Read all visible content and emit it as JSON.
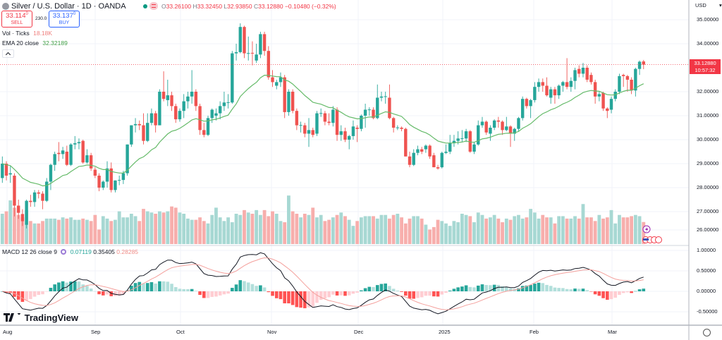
{
  "header": {
    "title": "Silver / U.S. Dollar · 1D · OANDA",
    "ohlc": {
      "o_label": "O",
      "o": "33.26100",
      "h_label": "H",
      "h": "33.32450",
      "l_label": "L",
      "l": "32.93850",
      "c_label": "C",
      "c": "33.12880",
      "change": "−0.10480 (−0.32%)"
    },
    "sell": {
      "price": "33.114",
      "sup": "0",
      "label": "SELL"
    },
    "spread": "230.0",
    "buy": {
      "price": "33.137",
      "sup": "0",
      "label": "BUY"
    }
  },
  "legends": {
    "volume": {
      "label": "Vol · Ticks",
      "value": "18.18K"
    },
    "ema": {
      "label": "EMA 20 close",
      "value": "32.32189"
    },
    "macd": {
      "label": "MACD 12 26 close 9",
      "hist": "0.07119",
      "macd": "0.35405",
      "signal": "0.28285"
    }
  },
  "price_axis": {
    "currency": "USD",
    "ticks": [
      "35.00000",
      "34.00000",
      "32.00000",
      "31.00000",
      "30.00000",
      "29.00000",
      "28.00000",
      "27.00000",
      "26.00000"
    ],
    "last_price": "33.12880",
    "countdown": "10:57:32"
  },
  "macd_axis": {
    "ticks": [
      "1.00000",
      "0.50000",
      "0.00000",
      "-0.50000"
    ]
  },
  "time_axis": {
    "ticks": [
      "Aug",
      "Sep",
      "Oct",
      "Nov",
      "Dec",
      "2025",
      "Feb",
      "Mar"
    ]
  },
  "brand": "TradingView",
  "colors": {
    "up": "#26a69a",
    "down": "#ef5350",
    "ema": "#66bb6a",
    "macd": "#131722",
    "signal": "#f4a09c",
    "accent_red": "#f23645",
    "buy_blue": "#2962ff"
  },
  "chart_data": {
    "type": "candlestick",
    "title": "Silver / U.S. Dollar · 1D · OANDA",
    "ylim": [
      25.8,
      35.2
    ],
    "macd_ylim": [
      -0.55,
      1.0
    ],
    "grid": true,
    "x_ticks": [
      "Aug",
      "Sep",
      "Oct",
      "Nov",
      "Dec",
      "2025",
      "Feb",
      "Mar"
    ],
    "candles_ohlc": [
      [
        28.4,
        29.3,
        28.2,
        29.0
      ],
      [
        29.0,
        29.1,
        28.3,
        28.5
      ],
      [
        28.55,
        28.9,
        28.2,
        28.6
      ],
      [
        28.5,
        28.6,
        26.8,
        27.25
      ],
      [
        27.25,
        27.5,
        26.7,
        26.95
      ],
      [
        26.9,
        27.1,
        26.4,
        26.6
      ],
      [
        26.45,
        27.5,
        26.3,
        27.45
      ],
      [
        27.45,
        27.7,
        27.2,
        27.4
      ],
      [
        27.4,
        27.9,
        27.2,
        27.8
      ],
      [
        27.8,
        27.9,
        27.55,
        27.75
      ],
      [
        27.75,
        27.85,
        27.1,
        27.45
      ],
      [
        27.45,
        28.4,
        27.4,
        28.25
      ],
      [
        28.25,
        29.0,
        27.9,
        28.95
      ],
      [
        28.95,
        29.5,
        28.7,
        29.4
      ],
      [
        29.45,
        29.9,
        29.1,
        29.4
      ],
      [
        29.4,
        29.7,
        29.2,
        29.55
      ],
      [
        29.5,
        29.75,
        28.9,
        28.95
      ],
      [
        28.95,
        29.85,
        28.9,
        29.8
      ],
      [
        29.8,
        30.15,
        29.6,
        29.85
      ],
      [
        29.85,
        30.05,
        29.6,
        29.9
      ],
      [
        29.95,
        30.0,
        29.0,
        29.05
      ],
      [
        29.05,
        29.6,
        29.0,
        29.35
      ],
      [
        29.35,
        29.45,
        28.7,
        28.8
      ],
      [
        28.75,
        28.85,
        28.4,
        28.5
      ],
      [
        28.5,
        28.6,
        27.85,
        28.0
      ],
      [
        28.0,
        28.3,
        27.9,
        28.25
      ],
      [
        28.25,
        29.1,
        28.0,
        28.8
      ],
      [
        28.8,
        29.05,
        27.8,
        27.9
      ],
      [
        27.9,
        28.3,
        27.8,
        28.3
      ],
      [
        28.3,
        28.5,
        28.1,
        28.32
      ],
      [
        28.32,
        28.7,
        28.15,
        28.6
      ],
      [
        28.6,
        29.8,
        28.5,
        29.8
      ],
      [
        29.8,
        30.6,
        29.7,
        30.6
      ],
      [
        30.6,
        30.9,
        30.3,
        30.65
      ],
      [
        30.65,
        30.8,
        30.4,
        30.6
      ],
      [
        30.6,
        31.1,
        29.8,
        29.95
      ],
      [
        29.95,
        31.1,
        29.9,
        30.7
      ],
      [
        30.7,
        31.3,
        30.6,
        31.1
      ],
      [
        31.1,
        31.2,
        30.3,
        30.6
      ],
      [
        30.6,
        32.1,
        30.6,
        32.0
      ],
      [
        32.0,
        32.85,
        31.6,
        31.7
      ],
      [
        31.65,
        32.5,
        31.4,
        31.85
      ],
      [
        31.85,
        32.0,
        31.2,
        31.4
      ],
      [
        31.4,
        31.5,
        30.7,
        30.85
      ],
      [
        30.85,
        31.3,
        30.75,
        31.2
      ],
      [
        31.2,
        31.9,
        30.9,
        31.6
      ],
      [
        31.6,
        32.0,
        31.3,
        31.8
      ],
      [
        31.8,
        32.9,
        31.5,
        32.0
      ],
      [
        32.0,
        32.1,
        31.2,
        31.4
      ],
      [
        31.4,
        31.5,
        30.2,
        30.4
      ],
      [
        30.4,
        30.7,
        30.1,
        30.2
      ],
      [
        30.2,
        31.0,
        30.15,
        30.9
      ],
      [
        30.9,
        31.3,
        30.7,
        31.25
      ],
      [
        31.0,
        31.3,
        30.8,
        31.1
      ],
      [
        31.1,
        31.6,
        30.85,
        31.4
      ],
      [
        31.4,
        32.0,
        31.2,
        31.55
      ],
      [
        31.55,
        31.9,
        31.3,
        31.56
      ],
      [
        31.55,
        33.7,
        31.5,
        33.6
      ],
      [
        33.6,
        34.0,
        33.3,
        33.65
      ],
      [
        33.65,
        34.85,
        33.6,
        34.7
      ],
      [
        34.7,
        34.75,
        33.4,
        33.6
      ],
      [
        33.6,
        34.3,
        33.3,
        33.61
      ],
      [
        33.62,
        34.1,
        33.1,
        33.6
      ],
      [
        33.3,
        34.0,
        33.2,
        33.55
      ],
      [
        33.55,
        34.5,
        33.4,
        34.4
      ],
      [
        34.4,
        34.5,
        33.5,
        33.7
      ],
      [
        33.7,
        33.9,
        32.5,
        32.6
      ],
      [
        32.6,
        32.9,
        32.2,
        32.4
      ],
      [
        32.25,
        32.5,
        32.1,
        32.4
      ],
      [
        32.4,
        32.8,
        32.2,
        32.6
      ],
      [
        32.6,
        32.7,
        30.9,
        31.15
      ],
      [
        31.15,
        32.1,
        31.0,
        32.0
      ],
      [
        32.0,
        32.1,
        31.1,
        31.2
      ],
      [
        31.2,
        31.3,
        30.4,
        30.6
      ],
      [
        30.6,
        30.75,
        30.3,
        30.61
      ],
      [
        30.6,
        30.7,
        30.1,
        30.25
      ],
      [
        30.25,
        30.9,
        29.7,
        30.4
      ],
      [
        30.4,
        30.5,
        30.1,
        30.2
      ],
      [
        30.25,
        31.2,
        30.15,
        31.1
      ],
      [
        31.1,
        31.3,
        30.95,
        31.11
      ],
      [
        31.1,
        31.2,
        30.6,
        30.75
      ],
      [
        30.75,
        31.1,
        30.6,
        30.7
      ],
      [
        30.7,
        31.4,
        30.55,
        31.25
      ],
      [
        31.25,
        31.35,
        29.95,
        30.2
      ],
      [
        30.2,
        30.6,
        29.95,
        30.35
      ],
      [
        30.35,
        30.5,
        29.9,
        30.0
      ],
      [
        30.0,
        30.2,
        29.6,
        30.15
      ],
      [
        30.15,
        30.8,
        30.0,
        30.55
      ],
      [
        30.5,
        30.6,
        29.9,
        30.45
      ],
      [
        30.45,
        31.05,
        30.35,
        31.0
      ],
      [
        31.0,
        31.5,
        30.5,
        31.25
      ],
      [
        31.25,
        31.35,
        31.0,
        31.26
      ],
      [
        31.25,
        31.35,
        30.85,
        30.9
      ],
      [
        30.9,
        32.3,
        30.85,
        31.75
      ],
      [
        31.75,
        32.0,
        31.6,
        31.8
      ],
      [
        31.8,
        32.0,
        31.5,
        31.81
      ],
      [
        31.75,
        32.3,
        30.85,
        30.9
      ],
      [
        30.9,
        30.95,
        30.3,
        30.5
      ],
      [
        30.5,
        30.6,
        30.4,
        30.51
      ],
      [
        30.5,
        30.55,
        30.35,
        30.45
      ],
      [
        30.45,
        30.5,
        29.3,
        29.3
      ],
      [
        29.3,
        29.5,
        28.85,
        28.95
      ],
      [
        28.95,
        29.6,
        28.9,
        29.45
      ],
      [
        29.45,
        29.75,
        29.35,
        29.6
      ],
      [
        29.6,
        29.7,
        29.4,
        29.5
      ],
      [
        29.6,
        29.8,
        29.45,
        29.75
      ],
      [
        29.75,
        29.8,
        29.2,
        29.3
      ],
      [
        29.35,
        29.45,
        28.85,
        28.85
      ],
      [
        28.85,
        28.95,
        28.75,
        28.8
      ],
      [
        28.85,
        29.5,
        28.8,
        29.45
      ],
      [
        29.45,
        29.8,
        29.4,
        29.5
      ],
      [
        29.5,
        30.2,
        29.4,
        29.85
      ],
      [
        29.85,
        30.2,
        29.7,
        29.95
      ],
      [
        29.95,
        30.35,
        29.8,
        30.05
      ],
      [
        30.05,
        30.4,
        29.9,
        30.06
      ],
      [
        30.05,
        30.45,
        29.9,
        30.35
      ],
      [
        30.35,
        30.4,
        29.45,
        29.5
      ],
      [
        29.5,
        29.9,
        29.4,
        29.8
      ],
      [
        29.8,
        30.8,
        29.75,
        30.6
      ],
      [
        30.6,
        30.95,
        30.5,
        30.75
      ],
      [
        30.75,
        30.8,
        30.2,
        30.3
      ],
      [
        30.25,
        30.6,
        29.95,
        30.5
      ],
      [
        30.5,
        30.85,
        30.4,
        30.8
      ],
      [
        30.8,
        30.95,
        30.5,
        30.75
      ],
      [
        30.75,
        30.8,
        30.2,
        30.4
      ],
      [
        30.4,
        30.95,
        30.35,
        30.55
      ],
      [
        30.55,
        30.6,
        29.7,
        30.25
      ],
      [
        30.25,
        30.5,
        29.95,
        30.45
      ],
      [
        30.45,
        30.95,
        30.35,
        30.9
      ],
      [
        30.9,
        31.8,
        30.8,
        31.7
      ],
      [
        31.7,
        31.75,
        31.3,
        31.4
      ],
      [
        31.4,
        31.7,
        30.9,
        31.65
      ],
      [
        31.65,
        32.4,
        31.55,
        32.2
      ],
      [
        32.2,
        32.55,
        32.0,
        32.4
      ],
      [
        32.4,
        32.55,
        32.0,
        32.25
      ],
      [
        32.25,
        32.6,
        31.8,
        31.85
      ],
      [
        31.75,
        32.2,
        31.5,
        32.1
      ],
      [
        32.1,
        32.2,
        31.5,
        31.85
      ],
      [
        31.85,
        32.3,
        31.7,
        32.25
      ],
      [
        32.25,
        32.45,
        32.0,
        32.4
      ],
      [
        32.4,
        33.4,
        32.1,
        32.2
      ],
      [
        32.2,
        32.6,
        32.0,
        32.45
      ],
      [
        32.45,
        33.0,
        32.1,
        32.9
      ],
      [
        32.95,
        33.1,
        32.6,
        32.75
      ],
      [
        32.75,
        33.2,
        32.6,
        33.0
      ],
      [
        33.0,
        33.1,
        32.4,
        32.5
      ],
      [
        32.7,
        32.8,
        32.3,
        32.4
      ],
      [
        32.4,
        32.5,
        31.5,
        31.8
      ],
      [
        31.8,
        32.0,
        31.6,
        31.9
      ],
      [
        31.95,
        32.0,
        31.2,
        31.3
      ],
      [
        31.3,
        31.35,
        30.9,
        31.2
      ],
      [
        31.25,
        31.8,
        31.1,
        31.7
      ],
      [
        31.7,
        32.1,
        31.6,
        32.0
      ],
      [
        32.0,
        32.75,
        31.9,
        32.65
      ],
      [
        32.7,
        32.75,
        32.2,
        32.65
      ],
      [
        32.65,
        32.7,
        32.0,
        32.5
      ],
      [
        32.5,
        32.6,
        31.9,
        32.05
      ],
      [
        32.05,
        33.0,
        31.8,
        32.95
      ],
      [
        32.95,
        33.3,
        32.7,
        33.25
      ],
      [
        33.261,
        33.3245,
        32.9385,
        33.1288
      ]
    ],
    "volume_k": [
      25,
      27,
      36,
      30,
      24,
      22,
      28,
      19,
      17,
      17,
      19,
      21,
      21,
      21,
      20,
      22,
      21,
      22,
      20,
      20,
      21,
      20,
      19,
      24,
      12,
      23,
      21,
      19,
      20,
      27,
      22,
      22,
      25,
      23,
      19,
      29,
      27,
      26,
      25,
      27,
      26,
      27,
      31,
      30,
      26,
      25,
      21,
      20,
      20,
      22,
      19,
      17,
      24,
      30,
      22,
      19,
      22,
      18,
      25,
      24,
      28,
      26,
      25,
      28,
      24,
      28,
      23,
      27,
      25,
      19,
      18,
      40,
      27,
      25,
      22,
      25,
      24,
      30,
      22,
      24,
      19,
      20,
      22,
      24,
      26,
      23,
      20,
      15,
      19,
      22,
      23,
      23,
      23,
      21,
      24,
      24,
      21,
      24,
      25,
      22,
      17,
      21,
      23,
      23,
      21,
      16,
      12,
      14,
      20,
      19,
      17,
      15,
      19,
      18,
      25,
      24,
      23,
      18,
      26,
      24,
      21,
      22,
      24,
      21,
      18,
      21,
      20,
      23,
      24,
      21,
      22,
      29,
      26,
      21,
      24,
      22,
      22,
      17,
      23,
      23,
      21,
      21,
      23,
      21,
      33,
      22,
      22,
      19,
      24,
      21,
      22,
      28,
      17,
      24,
      22,
      22,
      23,
      24,
      23,
      18.18
    ],
    "indicators": [
      "EMA 20 close",
      "MACD 12 26 close 9",
      "Vol · Ticks"
    ]
  }
}
